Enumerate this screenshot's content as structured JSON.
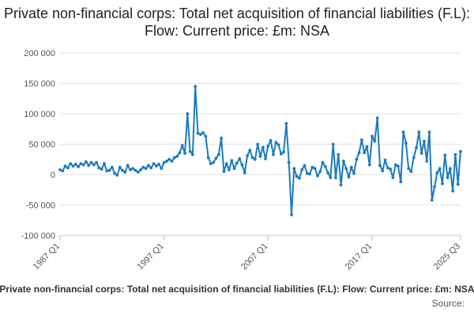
{
  "chart_data": {
    "type": "line",
    "title": "Private non-financial corps: Total net acquisition of financial liabilities (F.L): Flow: Current price: £m: NSA",
    "footer_text": "Private non-financial corps: Total net acquisition of financial liabilities (F.L): Flow: Current price: £m: NSA",
    "source_label": "Source:",
    "xlabel": "",
    "ylabel": "",
    "ylim": [
      -100000,
      200000
    ],
    "yticks": [
      200000,
      150000,
      100000,
      50000,
      0,
      -50000,
      -100000
    ],
    "ytick_labels": [
      "200 000",
      "150 000",
      "100 000",
      "50 000",
      "0",
      "-50 000",
      "-100 000"
    ],
    "x_tick_positions": [
      0,
      40,
      80,
      120,
      154
    ],
    "x_tick_labels": [
      "1987 Q1",
      "1997 Q1",
      "2007 Q1",
      "2017 Q1",
      "2025 Q3"
    ],
    "grid": true,
    "series": [
      {
        "name": "Private non-financial corps: Total net acquisition of financial liabilities (F.L): Flow: Current price: £m: NSA",
        "color": "#1b7bbf",
        "values": [
          8000,
          6000,
          14000,
          11000,
          18000,
          14000,
          17000,
          13000,
          18000,
          16000,
          21000,
          15000,
          20000,
          16000,
          20000,
          11000,
          9000,
          18000,
          6000,
          7000,
          12000,
          2000,
          -1000,
          12000,
          7000,
          4000,
          15000,
          8000,
          10000,
          7000,
          4000,
          8000,
          12000,
          10000,
          15000,
          11000,
          18000,
          14000,
          17000,
          10000,
          20000,
          22000,
          25000,
          22000,
          28000,
          30000,
          36000,
          48000,
          35000,
          100000,
          38000,
          33000,
          145000,
          68000,
          66000,
          69000,
          63000,
          28000,
          18000,
          20000,
          27000,
          33000,
          60000,
          5000,
          18000,
          8000,
          23000,
          10000,
          19000,
          26000,
          16000,
          3000,
          31000,
          40000,
          28000,
          25000,
          50000,
          30000,
          45000,
          26000,
          47000,
          56000,
          33000,
          53000,
          49000,
          34000,
          37000,
          84000,
          20000,
          -66000,
          10000,
          -3000,
          -6000,
          8000,
          15000,
          2000,
          1000,
          12000,
          10000,
          -2000,
          5000,
          20000,
          13000,
          3000,
          -5000,
          50000,
          -5000,
          33000,
          -17000,
          22000,
          10000,
          -4000,
          12000,
          2000,
          25000,
          36000,
          57000,
          36000,
          46000,
          16000,
          63000,
          55000,
          93000,
          15000,
          6000,
          24000,
          11000,
          9000,
          -5000,
          16000,
          14000,
          -12000,
          70000,
          52000,
          10000,
          5000,
          28000,
          44000,
          70000,
          35000,
          55000,
          22000,
          70000,
          -42000,
          -20000,
          3000,
          10000,
          -15000,
          32000,
          -5000,
          10000,
          -27000,
          33000,
          -16000,
          38000
        ]
      }
    ]
  }
}
